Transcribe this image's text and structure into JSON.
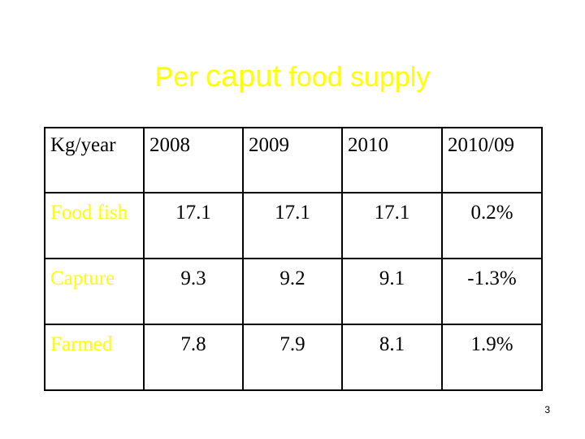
{
  "title": {
    "part1": "Per ",
    "part2": "caput",
    "part3": " food supply"
  },
  "table": {
    "headers": [
      "Kg/year",
      "2008",
      "2009",
      "2010",
      "2010/09"
    ],
    "rows": [
      {
        "label": "Food fish",
        "values": [
          "17.1",
          "17.1",
          "17.1",
          "0.2%"
        ]
      },
      {
        "label": "Capture",
        "values": [
          "9.3",
          "9.2",
          "9.1",
          "-1.3%"
        ]
      },
      {
        "label": "Farmed",
        "values": [
          "7.8",
          "7.9",
          "8.1",
          "1.9%"
        ]
      }
    ]
  },
  "colors": {
    "title": "#ffff00",
    "row_label": "#ffff00",
    "text": "#000000",
    "background": "#ffffff"
  },
  "page_number": "3"
}
